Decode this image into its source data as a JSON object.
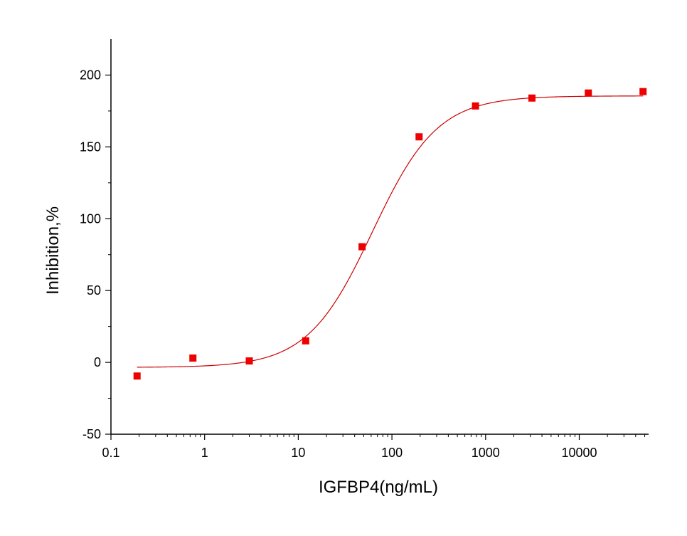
{
  "chart_data": {
    "type": "scatter",
    "title": "",
    "xlabel": "IGFBP4(ng/mL)",
    "ylabel": "Inhibition,%",
    "x_scale": "log",
    "xlim": [
      0.1,
      55000
    ],
    "ylim": [
      -50,
      225
    ],
    "x_ticks": [
      {
        "value": 0.1,
        "label": "0.1"
      },
      {
        "value": 1,
        "label": "1"
      },
      {
        "value": 10,
        "label": "10"
      },
      {
        "value": 100,
        "label": "100"
      },
      {
        "value": 1000,
        "label": "1000"
      },
      {
        "value": 10000,
        "label": "10000"
      }
    ],
    "y_ticks": [
      {
        "value": -50,
        "label": "-50"
      },
      {
        "value": 0,
        "label": "0"
      },
      {
        "value": 50,
        "label": "50"
      },
      {
        "value": 100,
        "label": "100"
      },
      {
        "value": 150,
        "label": "150"
      },
      {
        "value": 200,
        "label": "200"
      }
    ],
    "grid": false,
    "legend": "none",
    "series": [
      {
        "kind": "points",
        "color": "#ee0000",
        "marker": "square",
        "points": [
          {
            "x": 0.19,
            "y": -9.5
          },
          {
            "x": 0.75,
            "y": 3
          },
          {
            "x": 3,
            "y": 1
          },
          {
            "x": 12,
            "y": 15
          },
          {
            "x": 48,
            "y": 80.5
          },
          {
            "x": 195,
            "y": 157
          },
          {
            "x": 780,
            "y": 178.5
          },
          {
            "x": 3125,
            "y": 184
          },
          {
            "x": 12500,
            "y": 187.5
          },
          {
            "x": 48000,
            "y": 188.5
          }
        ]
      },
      {
        "kind": "fit-curve",
        "color": "#cc0000",
        "model": "4PL",
        "bottom": -3.5,
        "top": 185.5,
        "ec50": 62,
        "hill": 1.25,
        "x_range": [
          0.19,
          48000
        ]
      }
    ]
  }
}
